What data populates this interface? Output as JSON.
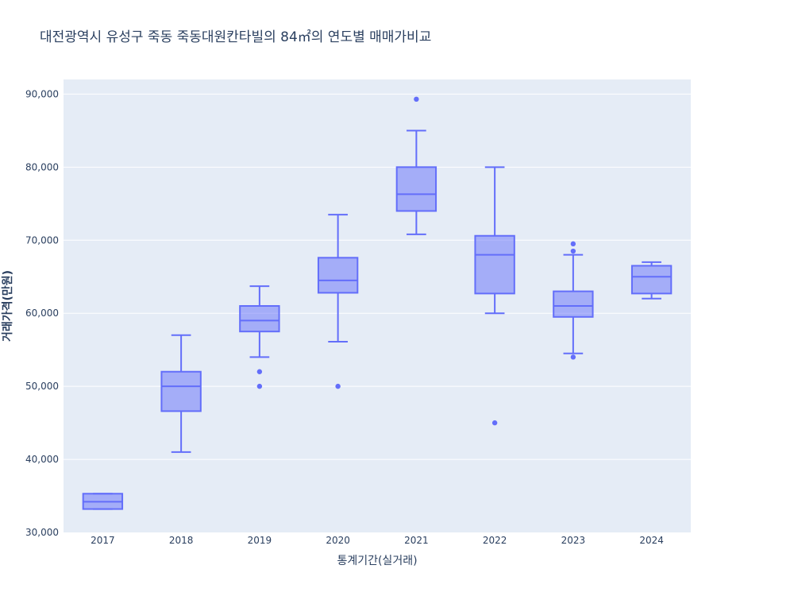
{
  "chart_data": {
    "type": "box",
    "title": "대전광역시 유성구 죽동 죽동대원칸타빌의 84㎡의 연도별 매매가비교",
    "xlabel": "통계기간(실거래)",
    "ylabel": "거래가격(만원)",
    "ylim": [
      30000,
      92000
    ],
    "yticks": [
      30000,
      40000,
      50000,
      60000,
      70000,
      80000,
      90000
    ],
    "ytick_labels": [
      "30,000",
      "40,000",
      "50,000",
      "60,000",
      "70,000",
      "80,000",
      "90,000"
    ],
    "grid": true,
    "categories": [
      "2017",
      "2018",
      "2019",
      "2020",
      "2021",
      "2022",
      "2023",
      "2024"
    ],
    "boxes": [
      {
        "category": "2017",
        "lower_fence": 33200,
        "q1": 33200,
        "median": 34200,
        "q3": 35300,
        "upper_fence": 35300,
        "outliers": []
      },
      {
        "category": "2018",
        "lower_fence": 41000,
        "q1": 46600,
        "median": 50000,
        "q3": 52000,
        "upper_fence": 57000,
        "outliers": []
      },
      {
        "category": "2019",
        "lower_fence": 54000,
        "q1": 57500,
        "median": 59000,
        "q3": 61000,
        "upper_fence": 63700,
        "outliers": [
          52000,
          50000
        ]
      },
      {
        "category": "2020",
        "lower_fence": 56100,
        "q1": 62800,
        "median": 64500,
        "q3": 67600,
        "upper_fence": 73500,
        "outliers": [
          50000
        ]
      },
      {
        "category": "2021",
        "lower_fence": 70800,
        "q1": 74000,
        "median": 76300,
        "q3": 80000,
        "upper_fence": 85000,
        "outliers": [
          89300
        ]
      },
      {
        "category": "2022",
        "lower_fence": 60000,
        "q1": 62700,
        "median": 68000,
        "q3": 70600,
        "upper_fence": 80000,
        "outliers": [
          45000
        ]
      },
      {
        "category": "2023",
        "lower_fence": 54500,
        "q1": 59500,
        "median": 61000,
        "q3": 63000,
        "upper_fence": 68000,
        "outliers": [
          69500,
          68500,
          54000
        ]
      },
      {
        "category": "2024",
        "lower_fence": 62000,
        "q1": 62700,
        "median": 65000,
        "q3": 66500,
        "upper_fence": 67000,
        "outliers": []
      }
    ],
    "colors": {
      "line": "#636efa",
      "fill": "rgba(99,110,250,0.5)",
      "plot_bg": "#e5ecf6",
      "grid": "#ffffff",
      "text": "#2a3f5f"
    }
  }
}
